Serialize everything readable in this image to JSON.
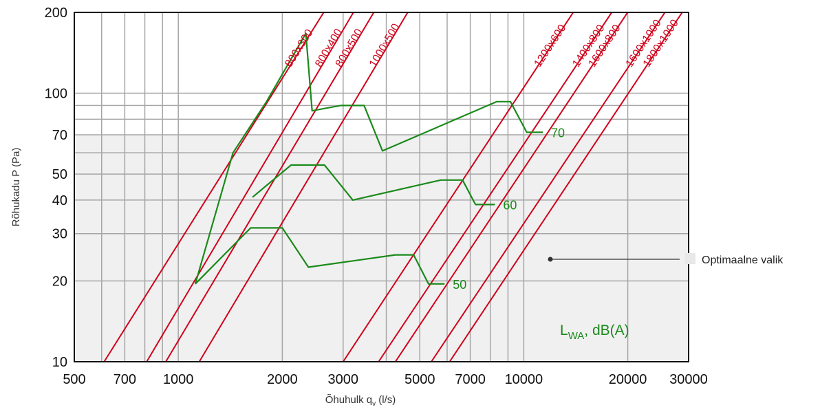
{
  "chart_data": {
    "type": "line",
    "xlabel": "Õhuhulk q",
    "xlabel_sub": "v",
    "xlabel_unit": " (l/s)",
    "ylabel": "Rõhukadu P (Pa)",
    "x_scale": "log",
    "y_scale": "log",
    "xlim": [
      500,
      30000
    ],
    "ylim": [
      10,
      200
    ],
    "x_ticks": [
      500,
      700,
      1000,
      2000,
      3000,
      5000,
      7000,
      10000,
      20000,
      30000
    ],
    "x_tick_labels": [
      "500",
      "700",
      "1000",
      "2000",
      "3000",
      "5000",
      "7000",
      "10000",
      "20000",
      "30000"
    ],
    "y_ticks": [
      10,
      20,
      30,
      40,
      50,
      70,
      100,
      200
    ],
    "y_tick_labels": [
      "10",
      "20",
      "30",
      "40",
      "50",
      "70",
      "100",
      "200"
    ],
    "grid": true,
    "optimal_region_below": 70,
    "legend": {
      "label": "Optimaalne valik",
      "color": "#f0f0f0"
    },
    "annotation": {
      "main": "L",
      "sub": "WA",
      "rest": ", dB(A)"
    },
    "colors": {
      "duct": "#d0021b",
      "sound": "#1a8a1a",
      "grid": "#a6a6a6",
      "optimal": "#f0f0f0"
    },
    "duct_sizes": [
      {
        "label": "800x300",
        "points": [
          [
            610,
            10
          ],
          [
            2400,
            165
          ]
        ]
      },
      {
        "label": "800x400",
        "points": [
          [
            810,
            10
          ],
          [
            3100,
            185
          ]
        ]
      },
      {
        "label": "800x500",
        "points": [
          [
            920,
            10
          ],
          [
            3550,
            185
          ]
        ]
      },
      {
        "label": "1000x500",
        "points": [
          [
            1150,
            10
          ],
          [
            4450,
            185
          ]
        ]
      },
      {
        "label": "1200x600",
        "points": [
          [
            3000,
            10
          ],
          [
            6100,
            40
          ]
        ]
      },
      {
        "label": "1400x800",
        "points": [
          [
            3800,
            10
          ],
          [
            7800,
            40
          ]
        ]
      },
      {
        "label": "1600x800",
        "points": [
          [
            4250,
            10
          ],
          [
            8700,
            40
          ]
        ]
      },
      {
        "label": "1600x1000",
        "points": [
          [
            5400,
            10
          ],
          [
            11100,
            40
          ]
        ]
      },
      {
        "label": "1800x1000",
        "points": [
          [
            6100,
            10
          ],
          [
            12500,
            40
          ]
        ]
      }
    ],
    "sound_lines": [
      {
        "label": "50",
        "points": [
          [
            1120,
            19.5
          ],
          [
            1620,
            31.5
          ],
          [
            2000,
            31.5
          ],
          [
            2380,
            22.5
          ],
          [
            4250,
            25
          ],
          [
            4800,
            25
          ],
          [
            5300,
            19.5
          ],
          [
            5900,
            19.5
          ]
        ]
      },
      {
        "label": "60",
        "points": [
          [
            1640,
            41
          ],
          [
            2120,
            54
          ],
          [
            2650,
            54
          ],
          [
            3200,
            40
          ],
          [
            5750,
            47.5
          ],
          [
            6650,
            47.5
          ],
          [
            7250,
            38.5
          ],
          [
            8250,
            38.5
          ]
        ]
      },
      {
        "label": "70",
        "points": [
          [
            1120,
            19.5
          ],
          [
            1440,
            60
          ],
          [
            1800,
            93
          ],
          [
            2340,
            167
          ],
          [
            2440,
            86
          ],
          [
            2950,
            90
          ],
          [
            3450,
            90
          ],
          [
            3900,
            61
          ],
          [
            8350,
            93
          ],
          [
            9150,
            93
          ],
          [
            10200,
            71.5
          ],
          [
            11350,
            71.5
          ]
        ]
      }
    ]
  }
}
